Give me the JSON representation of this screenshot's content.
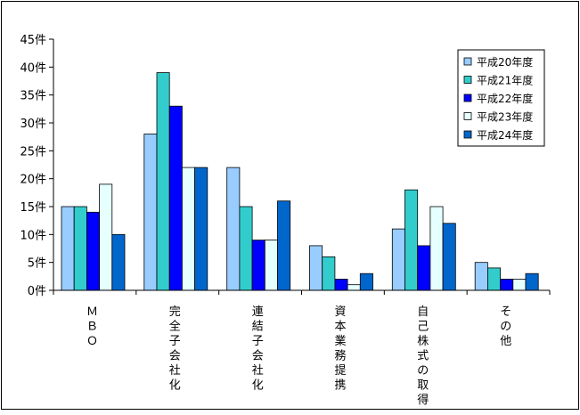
{
  "chart_data": {
    "type": "bar",
    "categories": [
      "ＭＢＯ",
      "完全子会社化",
      "連結子会社化",
      "資本業務提携",
      "自己株式の取得",
      "その他"
    ],
    "series": [
      {
        "name": "平成20年度",
        "color": "#99CCFF",
        "values": [
          15,
          28,
          22,
          8,
          11,
          5
        ]
      },
      {
        "name": "平成21年度",
        "color": "#33CCCC",
        "values": [
          15,
          39,
          15,
          6,
          18,
          4
        ]
      },
      {
        "name": "平成22年度",
        "color": "#0000FF",
        "values": [
          14,
          33,
          9,
          2,
          8,
          2
        ]
      },
      {
        "name": "平成23年度",
        "color": "#E6FFFF",
        "values": [
          19,
          22,
          9,
          1,
          15,
          2
        ]
      },
      {
        "name": "平成24年度",
        "color": "#0066CC",
        "values": [
          10,
          22,
          16,
          3,
          12,
          3
        ]
      }
    ],
    "yticks": [
      "0件",
      "5件",
      "10件",
      "15件",
      "20件",
      "25件",
      "30件",
      "35件",
      "40件",
      "45件"
    ],
    "ylim": [
      0,
      45
    ],
    "ytick_step": 5,
    "grid": false,
    "legend_position": "top-right",
    "title": "",
    "xlabel": "",
    "ylabel": ""
  }
}
